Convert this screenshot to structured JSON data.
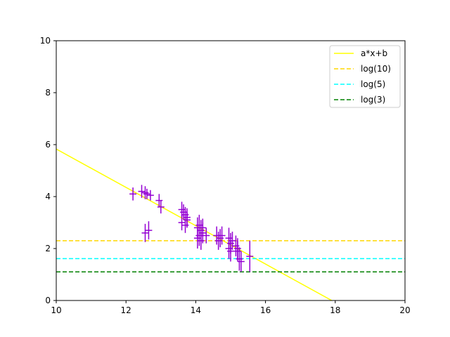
{
  "chart_data": {
    "type": "scatter",
    "title": "",
    "xlabel": "",
    "ylabel": "",
    "xlim": [
      10,
      20
    ],
    "ylim": [
      0,
      10
    ],
    "x_ticks": [
      "10",
      "12",
      "14",
      "16",
      "18",
      "20"
    ],
    "y_ticks": [
      "0",
      "2",
      "4",
      "6",
      "8",
      "10"
    ],
    "grid": false,
    "legend_position": "upper right",
    "series": [
      {
        "name": "a*x+b",
        "kind": "line",
        "color": "#ffff00",
        "style": "solid",
        "x": [
          10,
          17.9
        ],
        "y": [
          5.83,
          0.0
        ]
      },
      {
        "name": "log(10)",
        "kind": "hline",
        "color": "#ffd700",
        "style": "dashed",
        "y": 2.3
      },
      {
        "name": "log(5)",
        "kind": "hline",
        "color": "#00ffff",
        "style": "dashed",
        "y": 1.61
      },
      {
        "name": "log(3)",
        "kind": "hline",
        "color": "#008000",
        "style": "dashed",
        "y": 1.1
      }
    ],
    "points": {
      "color": "#9400d3",
      "x": [
        12.2,
        12.45,
        12.55,
        12.6,
        12.7,
        12.95,
        13.0,
        12.55,
        12.65,
        13.6,
        13.65,
        13.7,
        13.75,
        13.6,
        13.7,
        13.75,
        14.05,
        14.1,
        14.15,
        14.2,
        14.05,
        14.1,
        14.2,
        14.15,
        14.3,
        14.6,
        14.7,
        14.65,
        14.75,
        14.95,
        15.0,
        14.95,
        15.0,
        15.05,
        15.15,
        15.2,
        15.25,
        15.3,
        15.2,
        15.55
      ],
      "y": [
        4.1,
        4.2,
        4.15,
        4.1,
        4.05,
        3.85,
        3.6,
        2.6,
        2.7,
        3.5,
        3.4,
        3.3,
        3.2,
        3.0,
        2.9,
        3.1,
        2.8,
        2.9,
        2.7,
        2.6,
        2.4,
        2.5,
        2.8,
        2.3,
        2.5,
        2.5,
        2.4,
        2.3,
        2.5,
        2.4,
        2.2,
        2.0,
        1.9,
        2.3,
        2.1,
        1.9,
        1.6,
        1.5,
        2.0,
        1.7
      ],
      "yerr": [
        0.25,
        0.25,
        0.25,
        0.2,
        0.2,
        0.25,
        0.25,
        0.35,
        0.35,
        0.3,
        0.3,
        0.3,
        0.35,
        0.3,
        0.3,
        0.3,
        0.4,
        0.4,
        0.4,
        0.4,
        0.4,
        0.4,
        0.35,
        0.35,
        0.3,
        0.35,
        0.35,
        0.35,
        0.35,
        0.4,
        0.4,
        0.4,
        0.4,
        0.35,
        0.4,
        0.4,
        0.45,
        0.4,
        0.4,
        0.6
      ],
      "xerr": [
        0.1,
        0.1,
        0.1,
        0.1,
        0.1,
        0.1,
        0.1,
        0.1,
        0.1,
        0.1,
        0.1,
        0.1,
        0.1,
        0.1,
        0.1,
        0.1,
        0.1,
        0.1,
        0.1,
        0.1,
        0.1,
        0.1,
        0.1,
        0.1,
        0.1,
        0.1,
        0.1,
        0.1,
        0.1,
        0.1,
        0.1,
        0.1,
        0.1,
        0.1,
        0.1,
        0.1,
        0.1,
        0.1,
        0.1,
        0.1
      ]
    }
  }
}
